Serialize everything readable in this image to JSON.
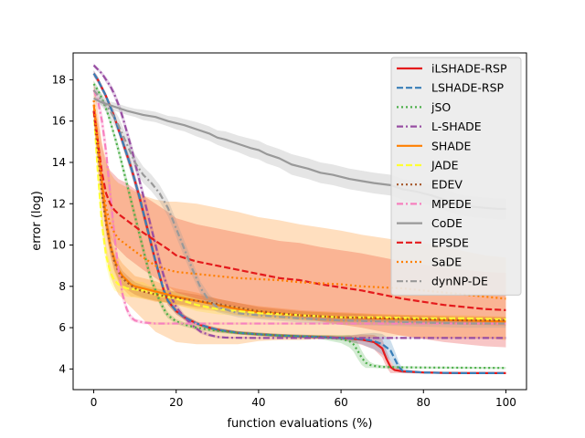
{
  "chart_data": {
    "type": "line",
    "title": "",
    "xlabel": "function evaluations (%)",
    "ylabel": "error (log)",
    "xlim": [
      -5,
      105
    ],
    "ylim": [
      3,
      19.3
    ],
    "xticks": [
      0,
      20,
      40,
      60,
      80,
      100
    ],
    "yticks": [
      4,
      6,
      8,
      10,
      12,
      14,
      16,
      18
    ],
    "grid": false,
    "legend_position": "top-right",
    "series": [
      {
        "name": "iLSHADE-RSP",
        "color": "#e41a1c",
        "dash": "solid",
        "x": [
          0,
          1,
          2,
          3,
          4,
          5,
          6,
          7,
          8,
          9,
          10,
          11,
          12,
          13,
          14,
          15,
          16,
          17,
          18,
          20,
          22,
          25,
          28,
          30,
          35,
          40,
          45,
          50,
          55,
          60,
          62,
          65,
          68,
          70,
          71,
          72,
          73,
          75,
          80,
          85,
          90,
          95,
          100
        ],
        "y": [
          18.3,
          18.0,
          17.6,
          17.2,
          16.7,
          16.2,
          15.6,
          15.0,
          14.4,
          13.8,
          13.1,
          12.4,
          11.6,
          10.8,
          10.0,
          9.2,
          8.5,
          7.8,
          7.3,
          6.8,
          6.5,
          6.2,
          6.0,
          5.9,
          5.75,
          5.68,
          5.62,
          5.58,
          5.55,
          5.5,
          5.47,
          5.42,
          5.3,
          5.0,
          4.5,
          4.1,
          3.95,
          3.88,
          3.83,
          3.81,
          3.8,
          3.8,
          3.8
        ],
        "band": [
          0.15,
          0.15,
          0.15,
          0.15,
          0.15,
          0.2,
          0.2,
          0.25,
          0.25,
          0.3,
          0.3,
          0.3,
          0.3,
          0.3,
          0.3,
          0.25,
          0.25,
          0.2,
          0.2,
          0.15,
          0.12,
          0.1,
          0.1,
          0.1,
          0.08,
          0.08,
          0.08,
          0.08,
          0.08,
          0.1,
          0.15,
          0.25,
          0.35,
          0.45,
          0.4,
          0.3,
          0.15,
          0.08,
          0.05,
          0.05,
          0.05,
          0.05,
          0.05
        ]
      },
      {
        "name": "LSHADE-RSP",
        "color": "#377eb8",
        "dash": "dashed",
        "x": [
          0,
          1,
          2,
          3,
          4,
          5,
          6,
          7,
          8,
          9,
          10,
          11,
          12,
          13,
          14,
          15,
          16,
          17,
          18,
          20,
          22,
          25,
          28,
          30,
          35,
          40,
          45,
          50,
          55,
          60,
          62,
          65,
          68,
          70,
          72,
          73,
          74,
          75,
          80,
          85,
          90,
          95,
          100
        ],
        "y": [
          18.3,
          18.0,
          17.6,
          17.2,
          16.7,
          16.2,
          15.6,
          15.0,
          14.4,
          13.8,
          13.1,
          12.4,
          11.6,
          10.8,
          10.0,
          9.2,
          8.5,
          7.8,
          7.3,
          6.8,
          6.5,
          6.2,
          6.0,
          5.9,
          5.75,
          5.68,
          5.62,
          5.58,
          5.55,
          5.5,
          5.48,
          5.45,
          5.35,
          5.2,
          4.9,
          4.5,
          4.1,
          3.9,
          3.83,
          3.81,
          3.8,
          3.8,
          3.8
        ],
        "band": [
          0.15,
          0.15,
          0.15,
          0.15,
          0.15,
          0.2,
          0.2,
          0.25,
          0.25,
          0.3,
          0.3,
          0.3,
          0.3,
          0.3,
          0.3,
          0.25,
          0.25,
          0.2,
          0.2,
          0.15,
          0.12,
          0.1,
          0.1,
          0.1,
          0.08,
          0.08,
          0.08,
          0.08,
          0.08,
          0.1,
          0.15,
          0.25,
          0.4,
          0.5,
          0.5,
          0.4,
          0.25,
          0.1,
          0.05,
          0.05,
          0.05,
          0.05,
          0.05
        ]
      },
      {
        "name": "jSO",
        "color": "#4daf4a",
        "dash": "dotted",
        "x": [
          0,
          1,
          2,
          3,
          4,
          5,
          6,
          7,
          8,
          9,
          10,
          11,
          12,
          13,
          14,
          15,
          16,
          17,
          18,
          20,
          22,
          25,
          28,
          30,
          35,
          40,
          45,
          50,
          55,
          60,
          62,
          63,
          64,
          65,
          66,
          67,
          68,
          70,
          75,
          80,
          90,
          100
        ],
        "y": [
          17.8,
          17.5,
          17.1,
          16.6,
          16.0,
          15.3,
          14.6,
          13.8,
          13.0,
          12.2,
          11.4,
          10.6,
          9.8,
          9.0,
          8.3,
          7.8,
          7.3,
          6.9,
          6.6,
          6.3,
          6.15,
          6.0,
          5.9,
          5.85,
          5.75,
          5.68,
          5.62,
          5.58,
          5.55,
          5.45,
          5.35,
          5.2,
          4.9,
          4.55,
          4.3,
          4.2,
          4.15,
          4.1,
          4.08,
          4.07,
          4.06,
          4.05
        ],
        "band": [
          0.15,
          0.15,
          0.15,
          0.15,
          0.2,
          0.2,
          0.25,
          0.25,
          0.3,
          0.3,
          0.3,
          0.3,
          0.3,
          0.3,
          0.25,
          0.25,
          0.2,
          0.2,
          0.15,
          0.12,
          0.1,
          0.1,
          0.1,
          0.1,
          0.08,
          0.08,
          0.08,
          0.08,
          0.1,
          0.2,
          0.3,
          0.35,
          0.4,
          0.35,
          0.25,
          0.15,
          0.1,
          0.08,
          0.06,
          0.05,
          0.05,
          0.05
        ]
      },
      {
        "name": "L-SHADE",
        "color": "#984ea3",
        "dash": "dashdot",
        "x": [
          0,
          1,
          2,
          3,
          4,
          5,
          6,
          7,
          8,
          9,
          10,
          11,
          12,
          13,
          14,
          15,
          16,
          17,
          18,
          19,
          20,
          22,
          24,
          26,
          28,
          30,
          32,
          35,
          40,
          50,
          60,
          70,
          80,
          90,
          100
        ],
        "y": [
          18.7,
          18.5,
          18.3,
          18.0,
          17.7,
          17.3,
          16.8,
          16.2,
          15.5,
          14.8,
          14.0,
          13.2,
          12.4,
          11.6,
          10.8,
          10.0,
          9.2,
          8.5,
          7.9,
          7.4,
          7.0,
          6.5,
          6.1,
          5.8,
          5.65,
          5.55,
          5.52,
          5.51,
          5.5,
          5.5,
          5.5,
          5.5,
          5.5,
          5.5,
          5.5
        ],
        "band": [
          0.1,
          0.1,
          0.1,
          0.15,
          0.15,
          0.2,
          0.2,
          0.25,
          0.25,
          0.3,
          0.3,
          0.3,
          0.3,
          0.3,
          0.3,
          0.3,
          0.3,
          0.25,
          0.25,
          0.2,
          0.2,
          0.15,
          0.12,
          0.1,
          0.08,
          0.06,
          0.05,
          0.05,
          0.05,
          0.05,
          0.05,
          0.05,
          0.05,
          0.05,
          0.05
        ]
      },
      {
        "name": "SHADE",
        "color": "#ff7f00",
        "dash": "solid",
        "x": [
          0,
          1,
          2,
          3,
          4,
          5,
          6,
          7,
          8,
          9,
          10,
          12,
          15,
          18,
          20,
          25,
          30,
          35,
          40,
          50,
          60,
          70,
          80,
          90,
          100
        ],
        "y": [
          16.8,
          15.0,
          13.0,
          11.2,
          10.0,
          9.3,
          8.8,
          8.5,
          8.3,
          8.1,
          8.0,
          7.9,
          7.75,
          7.6,
          7.5,
          7.3,
          7.1,
          6.9,
          6.75,
          6.6,
          6.5,
          6.45,
          6.4,
          6.35,
          6.3
        ],
        "band": [
          0.3,
          0.5,
          0.6,
          0.6,
          0.6,
          0.6,
          0.6,
          0.6,
          0.6,
          0.6,
          0.5,
          0.5,
          0.5,
          0.4,
          0.4,
          0.4,
          0.3,
          0.3,
          0.3,
          0.25,
          0.25,
          0.2,
          0.2,
          0.2,
          0.2
        ]
      },
      {
        "name": "JADE",
        "color": "#ffff33",
        "dash": "dashed",
        "x": [
          0,
          1,
          2,
          3,
          4,
          5,
          6,
          7,
          8,
          10,
          12,
          15,
          20,
          25,
          30,
          40,
          50,
          60,
          70,
          80,
          90,
          100
        ],
        "y": [
          16.5,
          13.5,
          11.0,
          9.5,
          8.7,
          8.3,
          8.1,
          8.0,
          7.9,
          7.85,
          7.8,
          7.6,
          7.4,
          7.1,
          6.9,
          6.7,
          6.6,
          6.5,
          6.5,
          6.45,
          6.45,
          6.4
        ],
        "band": [
          0.3,
          0.4,
          0.5,
          0.5,
          0.5,
          0.5,
          0.4,
          0.4,
          0.4,
          0.4,
          0.4,
          0.3,
          0.3,
          0.3,
          0.25,
          0.2,
          0.2,
          0.2,
          0.15,
          0.15,
          0.15,
          0.15
        ]
      },
      {
        "name": "EDEV",
        "color": "#a65628",
        "dash": "dotted",
        "x": [
          0,
          1,
          2,
          3,
          4,
          5,
          6,
          7,
          8,
          10,
          12,
          15,
          20,
          25,
          30,
          40,
          50,
          60,
          70,
          80,
          90,
          100
        ],
        "y": [
          16.5,
          14.5,
          12.5,
          11.0,
          10.0,
          9.2,
          8.7,
          8.4,
          8.2,
          7.9,
          7.75,
          7.6,
          7.45,
          7.3,
          7.15,
          6.8,
          6.6,
          6.5,
          6.45,
          6.4,
          6.35,
          6.35
        ],
        "band": [
          0.2,
          0.3,
          0.4,
          0.4,
          0.4,
          0.4,
          0.4,
          0.35,
          0.35,
          0.3,
          0.3,
          0.3,
          0.3,
          0.3,
          0.25,
          0.2,
          0.2,
          0.2,
          0.15,
          0.15,
          0.15,
          0.15
        ]
      },
      {
        "name": "MPEDE",
        "color": "#f781bf",
        "dash": "dashdot",
        "x": [
          0,
          1,
          2,
          3,
          4,
          5,
          6,
          7,
          8,
          9,
          10,
          12,
          15,
          20,
          30,
          40,
          50,
          60,
          70,
          80,
          90,
          100
        ],
        "y": [
          17.5,
          17.0,
          16.0,
          14.5,
          12.5,
          10.5,
          8.8,
          7.6,
          6.9,
          6.5,
          6.35,
          6.25,
          6.2,
          6.2,
          6.2,
          6.2,
          6.2,
          6.2,
          6.2,
          6.2,
          6.2,
          6.2
        ],
        "band": [
          0.3,
          0.4,
          0.5,
          0.6,
          0.6,
          0.5,
          0.4,
          0.3,
          0.2,
          0.15,
          0.1,
          0.08,
          0.06,
          0.05,
          0.05,
          0.05,
          0.05,
          0.05,
          0.05,
          0.05,
          0.05,
          0.05
        ]
      },
      {
        "name": "CoDE",
        "color": "#999999",
        "dash": "solid",
        "x": [
          0,
          2,
          5,
          8,
          10,
          12,
          15,
          18,
          20,
          22,
          25,
          28,
          30,
          32,
          35,
          38,
          40,
          42,
          45,
          48,
          50,
          52,
          55,
          58,
          60,
          62,
          65,
          68,
          70,
          72,
          75,
          78,
          80,
          82,
          85,
          88,
          90,
          92,
          95,
          98,
          100
        ],
        "y": [
          17.1,
          16.9,
          16.7,
          16.5,
          16.4,
          16.3,
          16.2,
          16.0,
          15.9,
          15.8,
          15.6,
          15.4,
          15.2,
          15.1,
          14.9,
          14.7,
          14.6,
          14.4,
          14.2,
          13.9,
          13.8,
          13.7,
          13.5,
          13.4,
          13.3,
          13.2,
          13.1,
          13.0,
          12.95,
          12.9,
          12.7,
          12.6,
          12.5,
          12.4,
          12.2,
          12.0,
          11.9,
          11.85,
          11.8,
          11.75,
          11.75
        ],
        "band": [
          0.1,
          0.15,
          0.2,
          0.2,
          0.2,
          0.25,
          0.25,
          0.25,
          0.3,
          0.3,
          0.35,
          0.35,
          0.35,
          0.4,
          0.4,
          0.45,
          0.45,
          0.45,
          0.45,
          0.5,
          0.5,
          0.5,
          0.5,
          0.5,
          0.5,
          0.5,
          0.5,
          0.5,
          0.5,
          0.5,
          0.5,
          0.5,
          0.5,
          0.5,
          0.5,
          0.5,
          0.5,
          0.5,
          0.5,
          0.5,
          0.5
        ]
      },
      {
        "name": "EPSDE",
        "color": "#e41a1c",
        "dash": "dashed",
        "x": [
          0,
          1,
          2,
          3,
          4,
          5,
          6,
          8,
          10,
          12,
          15,
          18,
          20,
          25,
          30,
          35,
          40,
          45,
          50,
          55,
          60,
          65,
          70,
          75,
          80,
          85,
          90,
          95,
          100
        ],
        "y": [
          16.5,
          15.0,
          13.5,
          12.5,
          12.0,
          11.7,
          11.5,
          11.2,
          10.9,
          10.6,
          10.2,
          9.8,
          9.5,
          9.2,
          9.0,
          8.8,
          8.6,
          8.4,
          8.3,
          8.1,
          7.95,
          7.8,
          7.6,
          7.4,
          7.25,
          7.1,
          7.0,
          6.9,
          6.85
        ],
        "band": [
          0.5,
          1.0,
          1.3,
          1.5,
          1.6,
          1.7,
          1.7,
          1.8,
          1.8,
          1.8,
          1.8,
          1.8,
          1.8,
          1.8,
          1.8,
          1.8,
          1.8,
          1.8,
          1.8,
          1.8,
          1.8,
          1.8,
          1.8,
          1.8,
          1.8,
          1.8,
          1.8,
          1.8,
          1.8
        ]
      },
      {
        "name": "SaDE",
        "color": "#ff7f00",
        "dash": "dotted",
        "x": [
          0,
          1,
          2,
          3,
          4,
          5,
          6,
          8,
          10,
          12,
          15,
          18,
          20,
          25,
          30,
          35,
          40,
          45,
          50,
          55,
          60,
          65,
          70,
          75,
          80,
          85,
          90,
          95,
          100
        ],
        "y": [
          17.0,
          15.0,
          13.0,
          11.8,
          11.0,
          10.6,
          10.3,
          10.0,
          9.7,
          9.4,
          9.0,
          8.8,
          8.7,
          8.6,
          8.5,
          8.4,
          8.35,
          8.3,
          8.2,
          8.15,
          8.1,
          8.0,
          7.95,
          7.9,
          7.8,
          7.7,
          7.6,
          7.5,
          7.4
        ],
        "band": [
          1.0,
          1.5,
          2.0,
          2.3,
          2.5,
          2.6,
          2.7,
          2.8,
          2.9,
          3.0,
          3.2,
          3.3,
          3.4,
          3.4,
          3.3,
          3.2,
          3.0,
          2.9,
          2.8,
          2.7,
          2.6,
          2.5,
          2.4,
          2.3,
          2.3,
          2.2,
          2.1,
          2.0,
          2.0
        ]
      },
      {
        "name": "dynNP-DE",
        "color": "#999999",
        "dash": "dashdot",
        "x": [
          0,
          2,
          4,
          6,
          8,
          10,
          12,
          14,
          16,
          18,
          20,
          22,
          24,
          26,
          28,
          30,
          35,
          40,
          50,
          60,
          70,
          80,
          90,
          100
        ],
        "y": [
          17.5,
          17.0,
          16.5,
          15.8,
          14.9,
          14.0,
          13.4,
          13.0,
          12.5,
          11.8,
          10.8,
          9.8,
          8.8,
          7.9,
          7.3,
          7.0,
          6.7,
          6.6,
          6.45,
          6.35,
          6.3,
          6.25,
          6.2,
          6.2
        ],
        "band": [
          0.2,
          0.3,
          0.35,
          0.4,
          0.4,
          0.4,
          0.4,
          0.4,
          0.4,
          0.4,
          0.4,
          0.4,
          0.35,
          0.3,
          0.3,
          0.25,
          0.2,
          0.2,
          0.2,
          0.2,
          0.2,
          0.2,
          0.2,
          0.2
        ]
      }
    ]
  }
}
